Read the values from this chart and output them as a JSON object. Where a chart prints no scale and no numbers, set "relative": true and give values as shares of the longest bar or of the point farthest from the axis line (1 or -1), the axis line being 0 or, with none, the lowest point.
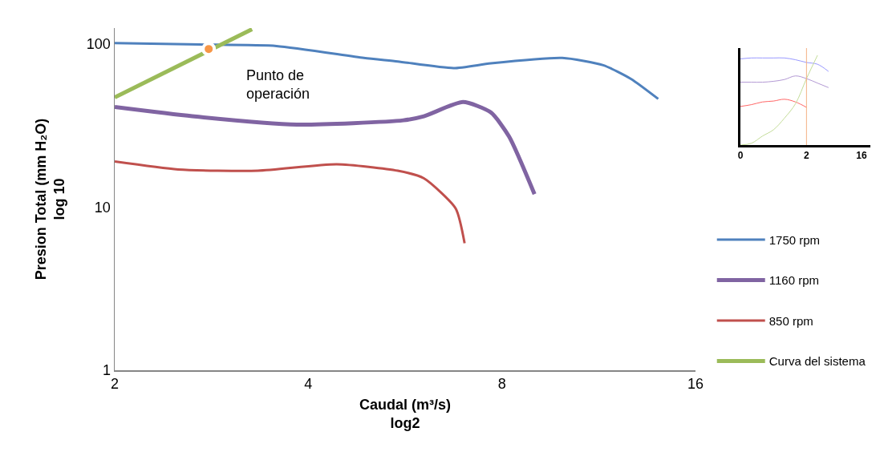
{
  "chart_data": [
    {
      "type": "line",
      "log": "xy",
      "xlabel": "Caudal (m³/s)\nlog2",
      "ylabel": "Presion Total (mm H₂O)\nlog 10",
      "xlim": [
        2,
        16
      ],
      "xticks": [
        2,
        4,
        8,
        16
      ],
      "ylim": [
        1,
        125
      ],
      "yticks": [
        1,
        10,
        100
      ],
      "legend": "right",
      "marker": "none",
      "series": [
        {
          "name": "1750 rpm",
          "color": "#4f81bd",
          "x": [
            2,
            2.71,
            3.57,
            4.88,
            5.51,
            6.73,
            7.69,
            9.93,
            11.5,
            12.7,
            14.0
          ],
          "values": [
            101,
            99,
            97,
            82,
            78,
            71,
            76,
            82,
            74,
            61,
            46
          ]
        },
        {
          "name": "1160 rpm",
          "color": "#8064a2",
          "x": [
            2,
            2.64,
            3.84,
            5.62,
            6.05,
            6.96,
            7.69,
            8.21,
            8.99
          ],
          "values": [
            41,
            36,
            32,
            34,
            36,
            44,
            38,
            27,
            12
          ]
        },
        {
          "name": "850 rpm",
          "color": "#c0504d",
          "x": [
            2,
            2.51,
            3.34,
            4.43,
            5.51,
            6.05,
            6.78,
            7.0
          ],
          "values": [
            19,
            17,
            16.7,
            18.3,
            16.7,
            15,
            9.8,
            6
          ]
        },
        {
          "name": "Curva del sistema",
          "color": "#9bbb59",
          "x": [
            2,
            3.27
          ],
          "values": [
            47,
            123
          ]
        },
        {
          "type": "scatter",
          "color": "#f79646",
          "marker": "circle",
          "x": [
            2.8
          ],
          "values": [
            93
          ]
        }
      ],
      "annotations": [
        {
          "text": "Punto de\noperación",
          "x": 2.8,
          "y": 93
        }
      ]
    },
    {
      "type": "line",
      "relative": true,
      "tick_labels": "x",
      "legend": false,
      "marker": "none",
      "categories": [
        "0",
        null,
        null,
        null,
        null,
        null,
        "2",
        null,
        null,
        null,
        null,
        "16"
      ],
      "series": [
        {
          "color": "#9999ff",
          "values": [
            0.96,
            0.97,
            0.97,
            0.97,
            0.97,
            0.95,
            0.92,
            0.9,
            0.82,
            null,
            null,
            null
          ]
        },
        {
          "color": "#b399d4",
          "values": [
            0.7,
            0.7,
            0.7,
            0.71,
            0.73,
            0.77,
            0.74,
            0.69,
            0.64,
            null,
            null,
            null
          ]
        },
        {
          "color": "#ff6666",
          "values": [
            0.43,
            0.45,
            0.48,
            0.49,
            0.51,
            0.48,
            0.42,
            null,
            null,
            null,
            null,
            null
          ]
        },
        {
          "color": "#c4dd99",
          "values": [
            0,
            0.02,
            0.1,
            0.17,
            0.3,
            0.46,
            0.74,
            1,
            null,
            null,
            null,
            null
          ]
        }
      ],
      "ref_lines": [
        {
          "axis": "x",
          "value": "2",
          "color": "#f4b183"
        }
      ]
    }
  ]
}
